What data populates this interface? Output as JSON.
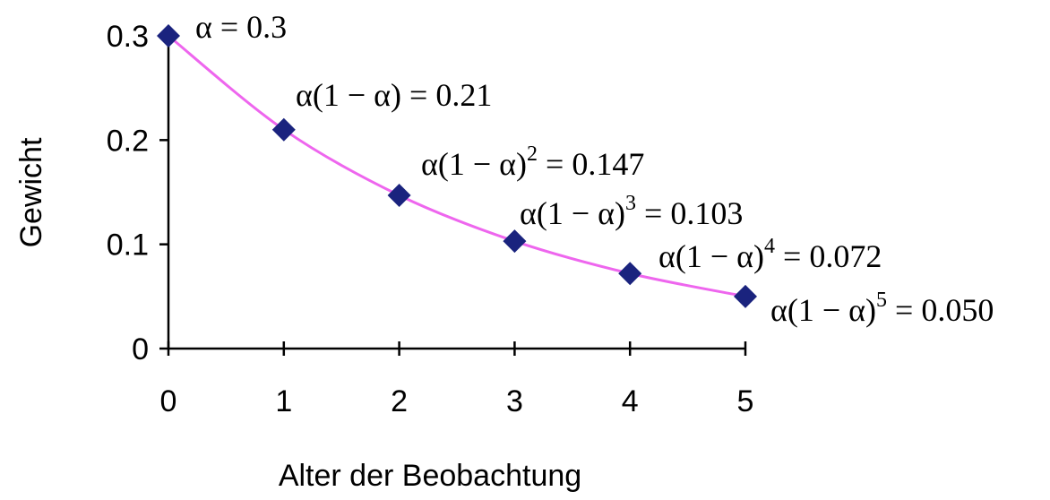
{
  "chart_data": {
    "type": "line",
    "title": "",
    "xlabel": "Alter der Beobachtung",
    "ylabel": "Gewicht",
    "x": [
      0,
      1,
      2,
      3,
      4,
      5
    ],
    "series": [
      {
        "values": [
          0.3,
          0.21,
          0.147,
          0.103,
          0.072,
          0.05
        ],
        "line_color": "#ee66ee",
        "marker_color": "#1a237e",
        "marker": "diamond"
      }
    ],
    "xlim": [
      0,
      5
    ],
    "ylim": [
      0,
      0.3
    ],
    "xticks": [
      "0",
      "1",
      "2",
      "3",
      "4",
      "5"
    ],
    "yticks": [
      "0",
      "0.1",
      "0.2",
      "0.3"
    ],
    "yticks_values": [
      0,
      0.1,
      0.2,
      0.3
    ],
    "grid": false,
    "legend": "none",
    "annotations": [
      {
        "x": 0,
        "prefix": "α",
        "exponent": "",
        "value_text": " = 0.3"
      },
      {
        "x": 1,
        "prefix": "α(1 − α)",
        "exponent": "",
        "value_text": " = 0.21"
      },
      {
        "x": 2,
        "prefix": "α(1 − α)",
        "exponent": "2",
        "value_text": " = 0.147"
      },
      {
        "x": 3,
        "prefix": "α(1 − α)",
        "exponent": "3",
        "value_text": " = 0.103"
      },
      {
        "x": 4,
        "prefix": "α(1 − α)",
        "exponent": "4",
        "value_text": " = 0.072"
      },
      {
        "x": 5,
        "prefix": "α(1 − α)",
        "exponent": "5",
        "value_text": " = 0.050"
      }
    ]
  }
}
